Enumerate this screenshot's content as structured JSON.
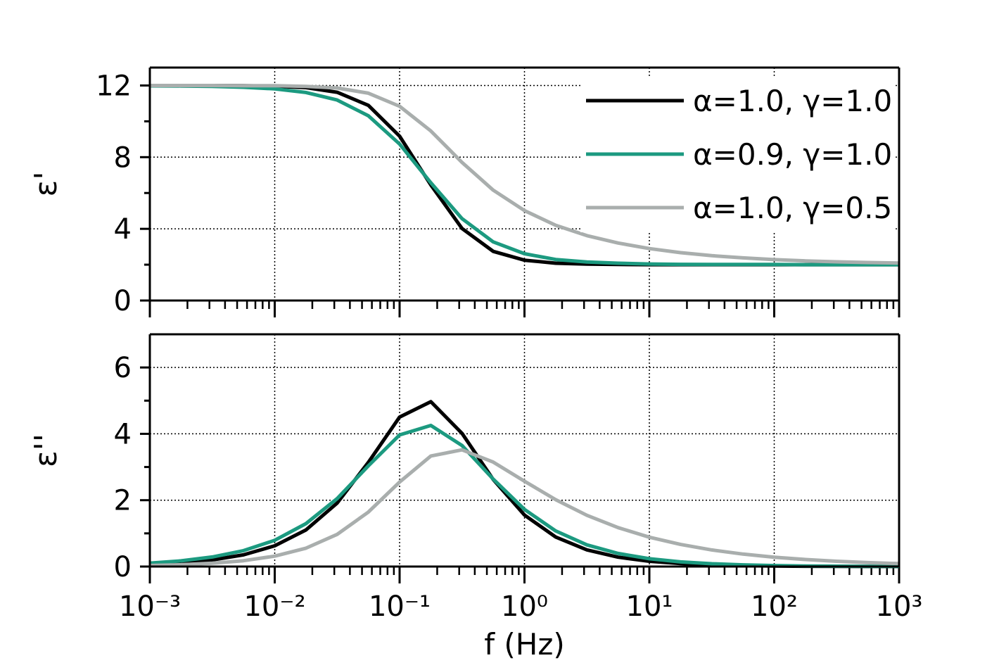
{
  "chart_data": [
    {
      "type": "line",
      "ylabel": "ε'",
      "log_x": true,
      "grid": true,
      "legend": "upper right",
      "xlim": [
        0.001,
        1000
      ],
      "ylim": [
        0,
        13
      ],
      "yticks": [
        0,
        4,
        8,
        12
      ],
      "x": [
        0.001,
        0.001778,
        0.003162,
        0.005623,
        0.01,
        0.01778,
        0.03162,
        0.05623,
        0.1,
        0.1778,
        0.3162,
        0.5623,
        1,
        1.778,
        3.162,
        5.623,
        10,
        17.78,
        31.62,
        56.23,
        100,
        177.8,
        316.2,
        562.3,
        1000
      ],
      "series": [
        {
          "name": "α=1.0, γ=1.0",
          "color": "#000000",
          "values": [
            12.0,
            12.0,
            12.0,
            11.99,
            11.96,
            11.88,
            11.62,
            10.89,
            9.17,
            6.45,
            4.02,
            2.74,
            2.25,
            2.08,
            2.03,
            2.01,
            2.0,
            2.0,
            2.0,
            2.0,
            2.0,
            2.0,
            2.0,
            2.0,
            2.0
          ]
        },
        {
          "name": "α=0.9, γ=1.0",
          "color": "#1c9a80",
          "values": [
            11.98,
            11.97,
            11.95,
            11.9,
            11.81,
            11.61,
            11.19,
            10.31,
            8.73,
            6.57,
            4.57,
            3.27,
            2.61,
            2.29,
            2.15,
            2.08,
            2.04,
            2.02,
            2.01,
            2.01,
            2.01,
            2.0,
            2.0,
            2.0,
            2.0
          ]
        },
        {
          "name": "α=1.0, γ=0.5",
          "color": "#a9aead",
          "values": [
            12.0,
            12.0,
            12.0,
            11.99,
            11.99,
            11.95,
            11.86,
            11.57,
            10.84,
            9.46,
            7.71,
            6.16,
            5.02,
            4.2,
            3.62,
            3.21,
            2.9,
            2.67,
            2.5,
            2.38,
            2.28,
            2.21,
            2.16,
            2.12,
            2.09
          ]
        }
      ]
    },
    {
      "type": "line",
      "ylabel": "ε''",
      "xlabel": "f (Hz)",
      "log_x": true,
      "grid": true,
      "xlim": [
        0.001,
        1000
      ],
      "ylim": [
        0,
        7
      ],
      "yticks": [
        0,
        2,
        4,
        6
      ],
      "xticks": [
        {
          "value": 0.001,
          "label": "10⁻³"
        },
        {
          "value": 0.01,
          "label": "10⁻²"
        },
        {
          "value": 0.1,
          "label": "10⁻¹"
        },
        {
          "value": 1,
          "label": "10⁰"
        },
        {
          "value": 10,
          "label": "10¹"
        },
        {
          "value": 100,
          "label": "10²"
        },
        {
          "value": 1000,
          "label": "10³"
        }
      ],
      "x": [
        0.001,
        0.001778,
        0.003162,
        0.005623,
        0.01,
        0.01778,
        0.03162,
        0.05623,
        0.1,
        0.1778,
        0.3162,
        0.5623,
        1,
        1.778,
        3.162,
        5.623,
        10,
        17.78,
        31.62,
        56.23,
        100,
        177.8,
        316.2,
        562.3,
        1000
      ],
      "series": [
        {
          "color": "#000000",
          "values": [
            0.063,
            0.112,
            0.199,
            0.353,
            0.626,
            1.103,
            1.911,
            3.141,
            4.505,
            4.969,
            4.016,
            2.621,
            1.552,
            0.888,
            0.502,
            0.283,
            0.159,
            0.09,
            0.05,
            0.028,
            0.016,
            0.009,
            0.005,
            0.003,
            0.002
          ]
        },
        {
          "color": "#1c9a80",
          "values": [
            0.103,
            0.172,
            0.288,
            0.479,
            0.792,
            1.293,
            2.046,
            3.035,
            3.966,
            4.252,
            3.649,
            2.635,
            1.723,
            1.073,
            0.654,
            0.394,
            0.236,
            0.141,
            0.084,
            0.05,
            0.03,
            0.018,
            0.011,
            0.006,
            0.004
          ]
        },
        {
          "color": "#a9aead",
          "values": [
            0.031,
            0.056,
            0.099,
            0.177,
            0.313,
            0.554,
            0.97,
            1.642,
            2.547,
            3.333,
            3.518,
            3.148,
            2.573,
            2.015,
            1.545,
            1.173,
            0.885,
            0.666,
            0.5,
            0.376,
            0.282,
            0.212,
            0.159,
            0.119,
            0.089
          ]
        }
      ]
    }
  ]
}
